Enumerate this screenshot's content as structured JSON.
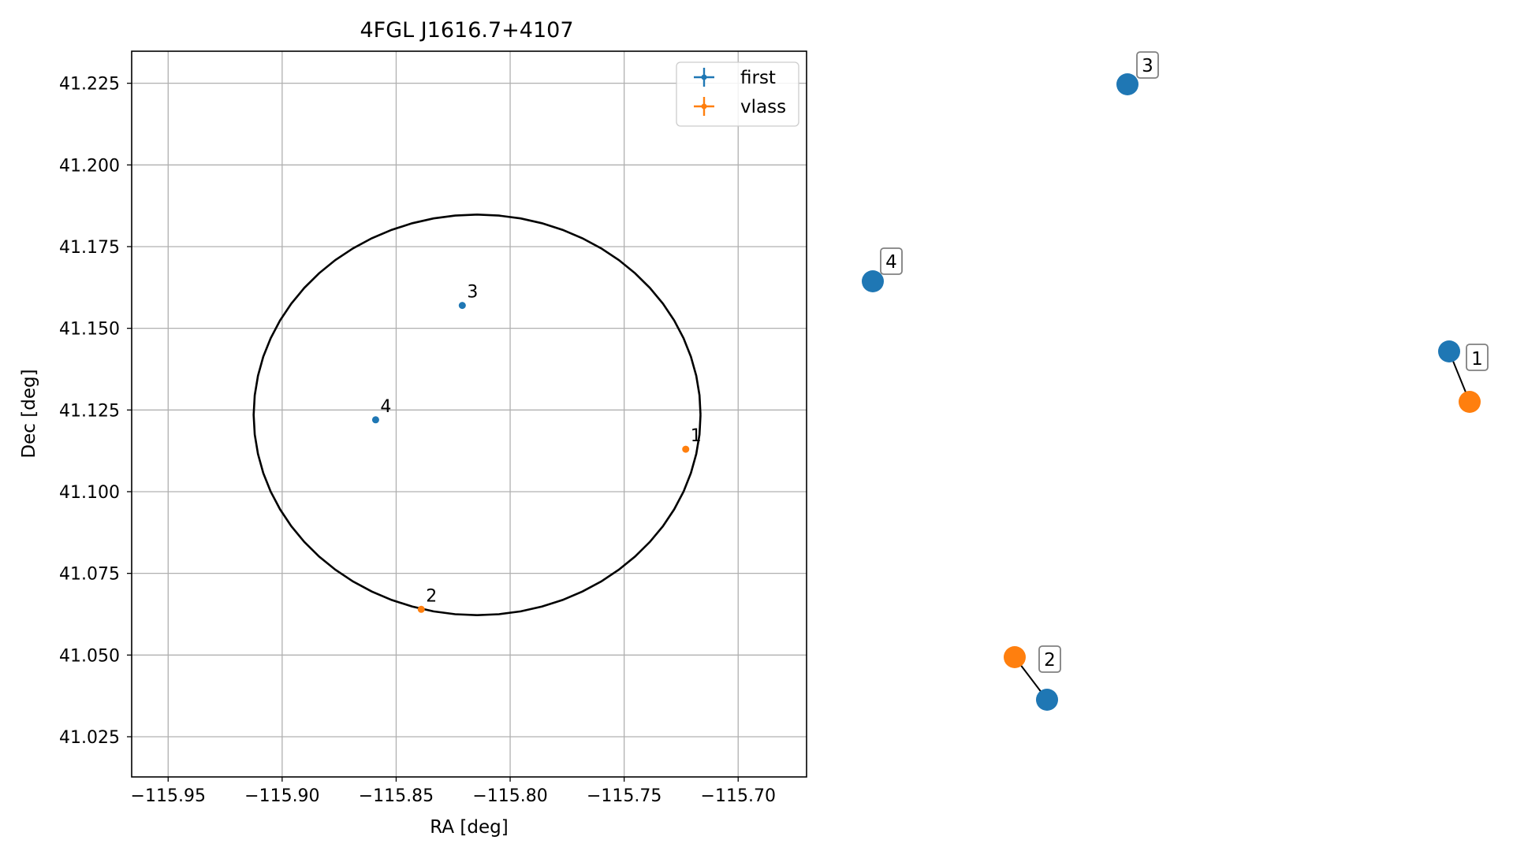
{
  "chart_data": [
    {
      "type": "scatter",
      "title": "4FGL J1616.7+4107",
      "xlabel": "RA [deg]",
      "ylabel": "Dec [deg]",
      "xlim": [
        -115.966,
        -115.67
      ],
      "ylim": [
        41.0127,
        41.2348
      ],
      "xticks": [
        -115.95,
        -115.9,
        -115.85,
        -115.8,
        -115.75,
        -115.7
      ],
      "xtick_labels": [
        "−115.95",
        "−115.90",
        "−115.85",
        "−115.80",
        "−115.75",
        "−115.70"
      ],
      "yticks": [
        41.025,
        41.05,
        41.075,
        41.1,
        41.125,
        41.15,
        41.175,
        41.2,
        41.225
      ],
      "ytick_labels": [
        "41.025",
        "41.050",
        "41.075",
        "41.100",
        "41.125",
        "41.150",
        "41.175",
        "41.200",
        "41.225"
      ],
      "grid": true,
      "legend_position": "top-right",
      "series": [
        {
          "name": "first",
          "color": "#1f77b4",
          "points": [
            {
              "x": -115.821,
              "y": 41.157,
              "label": "3"
            },
            {
              "x": -115.859,
              "y": 41.122,
              "label": "4"
            }
          ]
        },
        {
          "name": "vlass",
          "color": "#ff7f0e",
          "points": [
            {
              "x": -115.723,
              "y": 41.113,
              "label": "1"
            },
            {
              "x": -115.839,
              "y": 41.064,
              "label": "2"
            }
          ]
        }
      ],
      "ellipse": {
        "center": [
          -115.8145,
          41.1235
        ],
        "width": 0.196,
        "height": 0.1226,
        "color": "#000000"
      }
    },
    {
      "type": "scatter",
      "description_free": true,
      "clusters": [
        {
          "label": "1",
          "points": [
            {
              "series": "first",
              "color": "#1f77b4"
            },
            {
              "series": "vlass",
              "color": "#ff7f0e"
            }
          ]
        },
        {
          "label": "2",
          "points": [
            {
              "series": "vlass",
              "color": "#ff7f0e"
            },
            {
              "series": "first",
              "color": "#1f77b4"
            }
          ]
        },
        {
          "label": "3",
          "points": [
            {
              "series": "first",
              "color": "#1f77b4"
            }
          ]
        },
        {
          "label": "4",
          "points": [
            {
              "series": "first",
              "color": "#1f77b4"
            }
          ]
        }
      ]
    }
  ]
}
